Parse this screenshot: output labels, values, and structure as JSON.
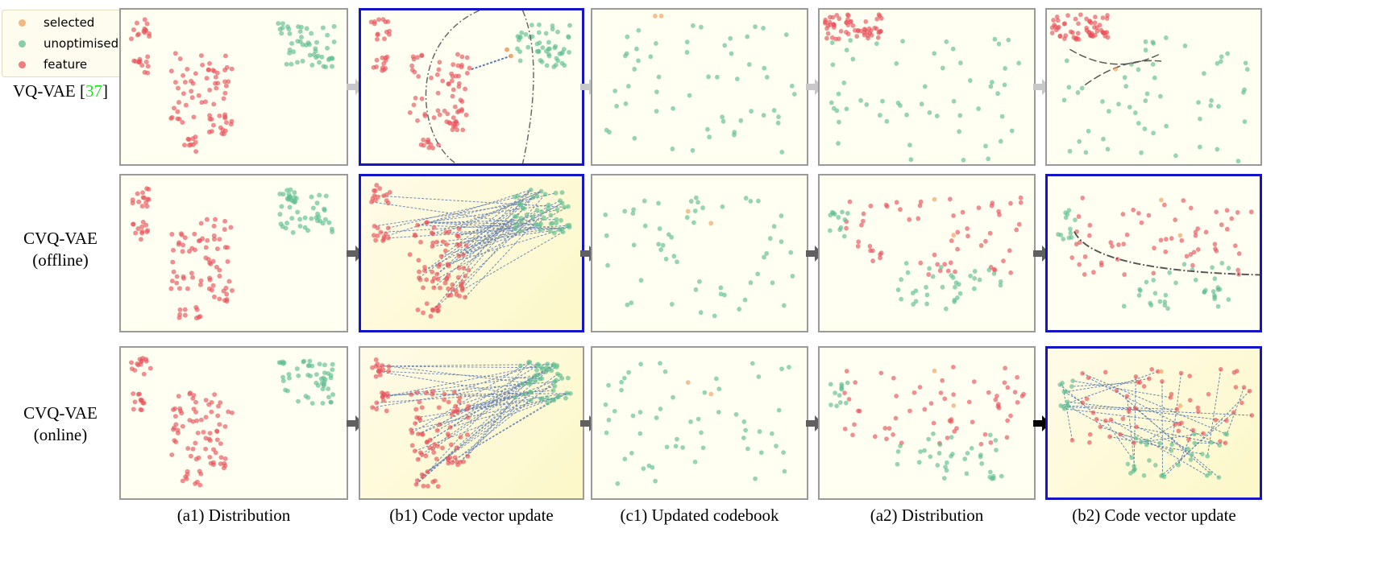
{
  "legend": {
    "items": [
      {
        "label": "selected",
        "color": "#f0a060"
      },
      {
        "label": "unoptimised",
        "color": "#5fbf8f"
      },
      {
        "label": "feature",
        "color": "#e8535a"
      }
    ]
  },
  "rows": [
    {
      "label_main": "VQ-VAE [",
      "label_ref": "37",
      "label_end": "]",
      "label_line2": "",
      "ref_color": "#22dd22"
    },
    {
      "label_main": "CVQ-VAE",
      "label_line2": "(offline)"
    },
    {
      "label_main": "CVQ-VAE",
      "label_line2": "(online)"
    }
  ],
  "captions": [
    "(a1) Distribution",
    "(b1) Code vector update",
    "(c1) Updated codebook",
    "(a2) Distribution",
    "(b2) Code vector update"
  ]
}
